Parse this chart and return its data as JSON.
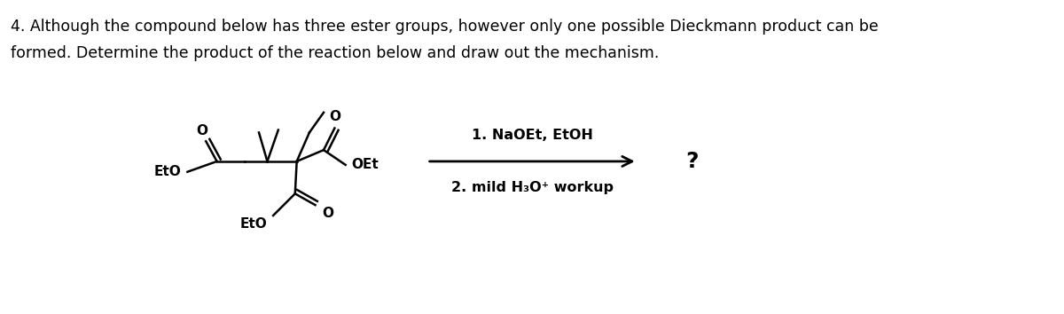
{
  "title_line1": "4. Although the compound below has three ester groups, however only one possible Dieckmann product can be",
  "title_line2": "formed. Determine the product of the reaction below and draw out the mechanism.",
  "condition1": "1. NaOEt, EtOH",
  "condition2": "2. mild H₃O⁺ workup",
  "question_mark": "?",
  "bg_color": "#ffffff",
  "text_color": "#000000",
  "title_fontsize": 12.5,
  "label_fontsize": 11,
  "struct_color": "#000000"
}
